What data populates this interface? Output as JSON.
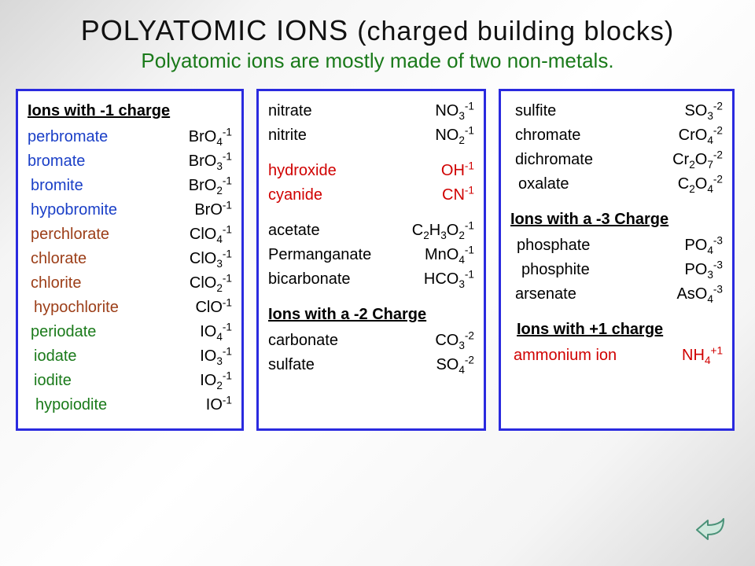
{
  "title": {
    "main_strong": "POLYATOMIC  IONS",
    "main_paren": "(charged building blocks)",
    "subtitle": "Polyatomic ions are mostly made of two non-metals."
  },
  "colors": {
    "blue": "#1a3fc7",
    "brown": "#9c3e18",
    "green": "#1a7a1a",
    "red": "#d00000",
    "black": "#000000"
  },
  "col1": {
    "header": "Ions with -1 charge",
    "items": [
      {
        "name": "perbromate",
        "base": "BrO",
        "sub": "4",
        "sup": "-1",
        "color": "blue"
      },
      {
        "name": "bromate",
        "base": "BrO",
        "sub": "3",
        "sup": "-1",
        "color": "blue"
      },
      {
        "name": "bromite",
        "base": "BrO",
        "sub": "2",
        "sup": "-1",
        "color": "blue",
        "indent": 4
      },
      {
        "name": "hypobromite",
        "base": "BrO",
        "sub": "",
        "sup": "-1",
        "color": "blue",
        "indent": 4
      },
      {
        "name": "perchlorate",
        "base": "ClO",
        "sub": "4",
        "sup": "-1",
        "color": "brown",
        "indent": 4
      },
      {
        "name": "chlorate",
        "base": "ClO",
        "sub": "3",
        "sup": "-1",
        "color": "brown",
        "indent": 4
      },
      {
        "name": "chlorite",
        "base": "ClO",
        "sub": "2",
        "sup": "-1",
        "color": "brown",
        "indent": 4
      },
      {
        "name": "hypochlorite",
        "base": "ClO",
        "sub": "",
        "sup": "-1",
        "color": "brown",
        "indent": 8
      },
      {
        "name": "periodate",
        "base": "IO",
        "sub": "4",
        "sup": "-1",
        "color": "green",
        "indent": 4
      },
      {
        "name": "iodate",
        "base": "IO",
        "sub": "3",
        "sup": "-1",
        "color": "green",
        "indent": 8
      },
      {
        "name": "iodite",
        "base": "IO",
        "sub": "2",
        "sup": "-1",
        "color": "green",
        "indent": 8
      },
      {
        "name": "hypoiodite",
        "base": "IO",
        "sub": "",
        "sup": "-1",
        "color": "green",
        "indent": 10
      }
    ]
  },
  "col2": {
    "groups": [
      {
        "items": [
          {
            "name": "nitrate",
            "base": "NO",
            "sub": "3",
            "sup": "-1",
            "color": "black"
          },
          {
            "name": "nitrite",
            "base": "NO",
            "sub": "2",
            "sup": "-1",
            "color": "black"
          }
        ]
      },
      {
        "items": [
          {
            "name": "hydroxide",
            "base": "OH",
            "sub": "",
            "sup": "-1",
            "color": "red"
          },
          {
            "name": "cyanide",
            "base": "CN",
            "sub": "",
            "sup": "-1",
            "color": "red"
          }
        ]
      },
      {
        "items": [
          {
            "name": "acetate",
            "formula_html": "C<sub>2</sub>H<sub>3</sub>O<sub>2</sub><sup>-1</sup>",
            "color": "black"
          },
          {
            "name": "Permanganate",
            "base": "MnO",
            "sub": "4",
            "sup": "-1",
            "color": "black"
          },
          {
            "name": "bicarbonate",
            "base": "HCO",
            "sub": "3",
            "sup": "-1",
            "color": "black"
          }
        ]
      }
    ],
    "header2": "Ions with a -2 Charge",
    "neg2": [
      {
        "name": "carbonate",
        "base": "CO",
        "sub": "3",
        "sup": "-2",
        "color": "black"
      },
      {
        "name": "sulfate",
        "base": "SO",
        "sub": "4",
        "sup": "-2",
        "color": "black"
      }
    ]
  },
  "col3": {
    "neg2": [
      {
        "name": "sulfite",
        "base": "SO",
        "sub": "3",
        "sup": "-2",
        "color": "black",
        "indent": 6
      },
      {
        "name": "chromate",
        "base": "CrO",
        "sub": "4",
        "sup": "-2",
        "color": "black",
        "indent": 6
      },
      {
        "name": "dichromate",
        "formula_html": "Cr<sub>2</sub>O<sub>7</sub><sup>-2</sup>",
        "color": "black",
        "indent": 6
      },
      {
        "name": "oxalate",
        "formula_html": "C<sub>2</sub>O<sub>4</sub><sup>-2</sup>",
        "color": "black",
        "indent": 10
      }
    ],
    "header3": "Ions with a -3 Charge",
    "neg3": [
      {
        "name": "phosphate",
        "base": "PO",
        "sub": "4",
        "sup": "-3",
        "color": "black",
        "indent": 8
      },
      {
        "name": "phosphite",
        "base": "PO",
        "sub": "3",
        "sup": "-3",
        "color": "black",
        "indent": 14
      },
      {
        "name": "arsenate",
        "base": "AsO",
        "sub": "4",
        "sup": "-3",
        "color": "black",
        "indent": 6
      }
    ],
    "header_pos": "Ions with +1 charge",
    "pos1": [
      {
        "name": "ammonium ion",
        "base": "NH",
        "sub": "4",
        "sup": "+1",
        "color": "red",
        "indent": 4
      }
    ]
  },
  "arrow_color": "#6fb89f"
}
